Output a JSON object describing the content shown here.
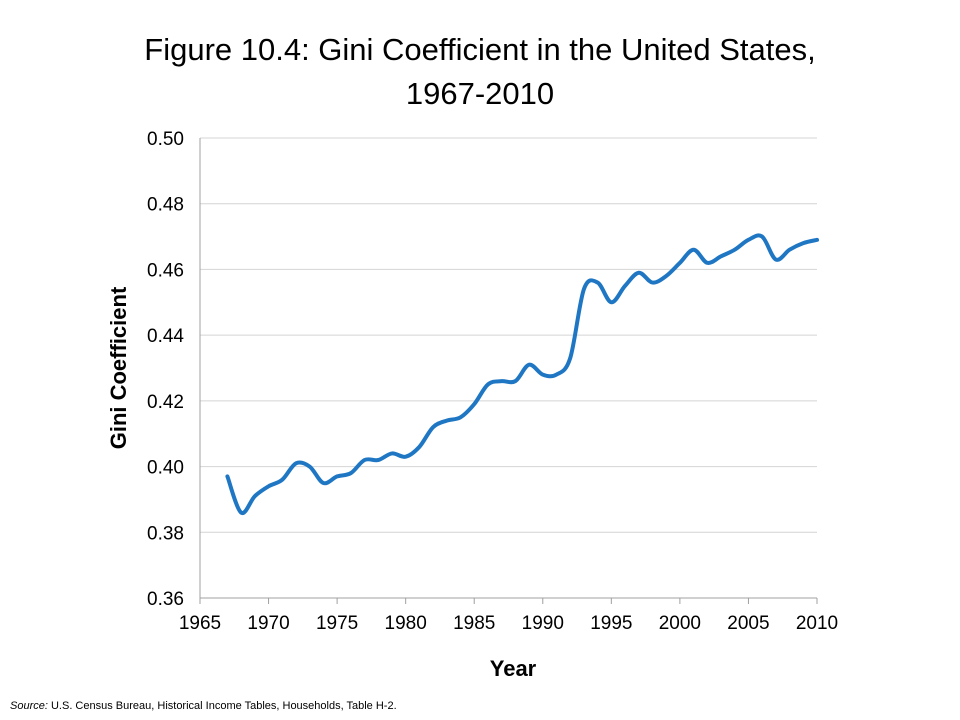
{
  "title_line1": "Figure 10.4: Gini Coefficient in the United States,",
  "title_line2": "1967-2010",
  "source_label": "Source:",
  "source_text": "U.S. Census Bureau, Historical Income Tables, Households, Table H-2.",
  "colors": {
    "line": "#1f77c4",
    "grid": "#d4d4d4",
    "axis": "#a0a0a0"
  },
  "chart_data": {
    "type": "line",
    "xlabel": "Year",
    "ylabel": "Gini Coefficient",
    "xlim": [
      1965,
      2010
    ],
    "ylim": [
      0.36,
      0.5
    ],
    "xticks": [
      "1965",
      "1970",
      "1975",
      "1980",
      "1985",
      "1990",
      "1995",
      "2000",
      "2005",
      "2010"
    ],
    "yticks": [
      "0.36",
      "0.38",
      "0.40",
      "0.42",
      "0.44",
      "0.46",
      "0.48",
      "0.50"
    ],
    "grid": true,
    "series": [
      {
        "x": [
          1967,
          1968,
          1969,
          1970,
          1971,
          1972,
          1973,
          1974,
          1975,
          1976,
          1977,
          1978,
          1979,
          1980,
          1981,
          1982,
          1983,
          1984,
          1985,
          1986,
          1987,
          1988,
          1989,
          1990,
          1991,
          1992,
          1993,
          1994,
          1995,
          1996,
          1997,
          1998,
          1999,
          2000,
          2001,
          2002,
          2003,
          2004,
          2005,
          2006,
          2007,
          2008,
          2009,
          2010
        ],
        "values": [
          0.397,
          0.386,
          0.391,
          0.394,
          0.396,
          0.401,
          0.4,
          0.395,
          0.397,
          0.398,
          0.402,
          0.402,
          0.404,
          0.403,
          0.406,
          0.412,
          0.414,
          0.415,
          0.419,
          0.425,
          0.426,
          0.426,
          0.431,
          0.428,
          0.428,
          0.433,
          0.454,
          0.456,
          0.45,
          0.455,
          0.459,
          0.456,
          0.458,
          0.462,
          0.466,
          0.462,
          0.464,
          0.466,
          0.469,
          0.47,
          0.463,
          0.466,
          0.468,
          0.469
        ]
      }
    ]
  }
}
